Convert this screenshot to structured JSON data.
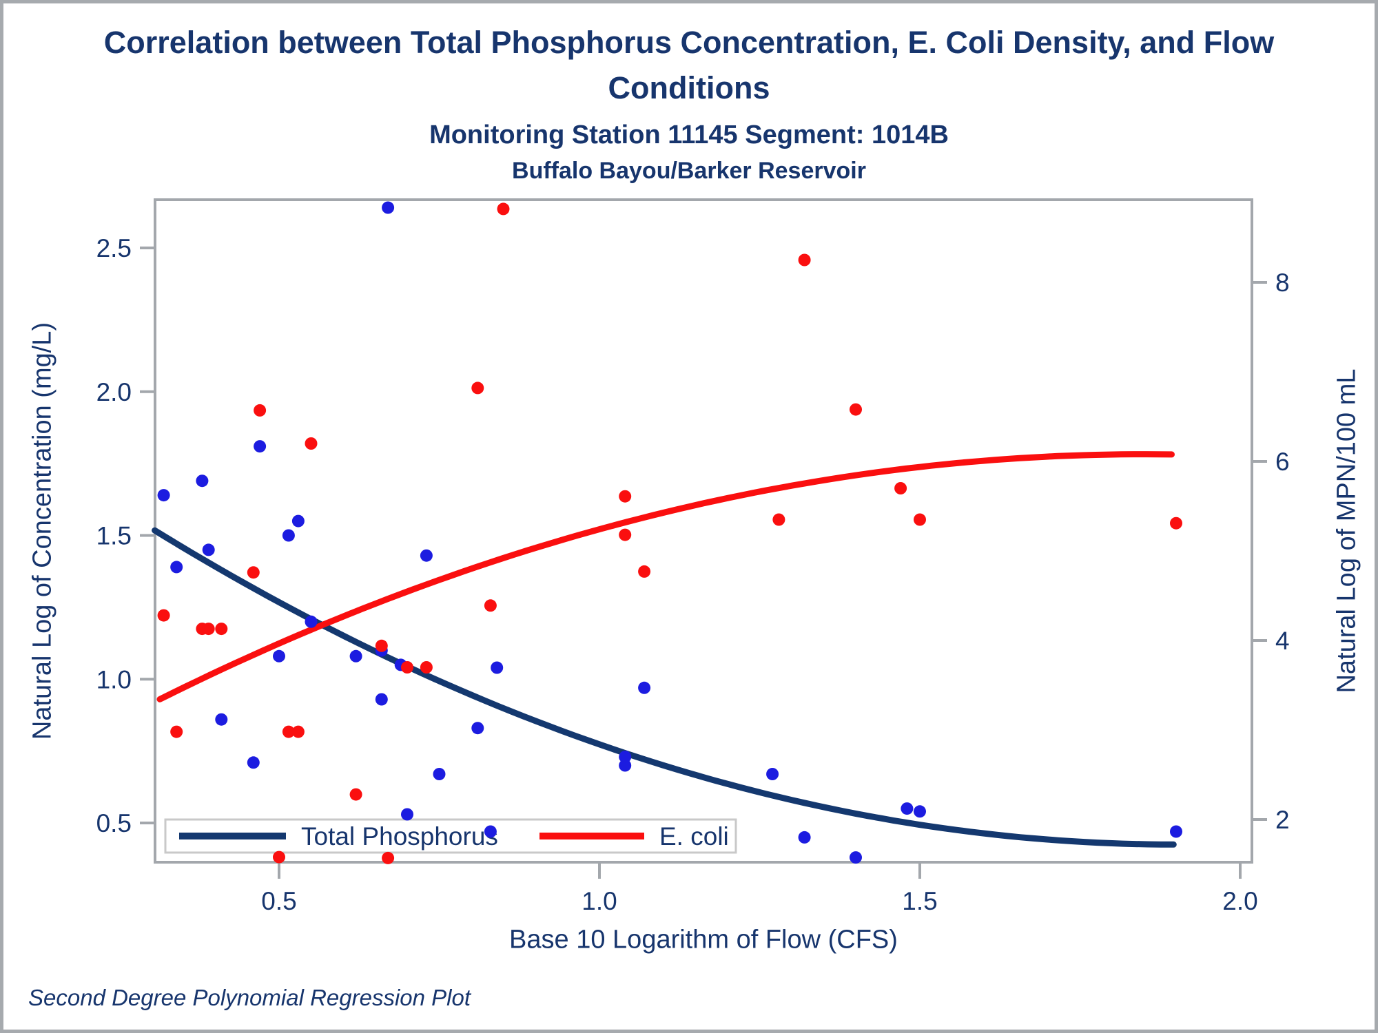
{
  "header": {
    "title_line1": "Correlation between Total Phosphorus Concentration, E. Coli Density, and Flow",
    "title_line2": "Conditions",
    "subtitle1": "Monitoring Station 11145 Segment: 1014B",
    "subtitle2": "Buffalo Bayou/Barker Reservoir"
  },
  "footnote": "Second Degree Polynomial Regression Plot",
  "colors": {
    "navy_text": "#17356d",
    "phosphorus_line": "#14386f",
    "phosphorus_point": "#1c1ce0",
    "ecoli": "#fa0f0f",
    "plot_border": "#a3a7ac",
    "legend_border": "#c9c9c9"
  },
  "chart_data": {
    "type": "scatter",
    "title": "Correlation between Total Phosphorus Concentration, E. Coli Density, and Flow Conditions",
    "subtitle": "Monitoring Station 11145 Segment: 1014B — Buffalo Bayou/Barker Reservoir",
    "grid": false,
    "legend_position": "inside bottom-left",
    "axes": {
      "x": {
        "title": "Base 10 Logarithm of Flow (CFS)",
        "range": [
          0.306,
          2.018
        ],
        "tick_values": [
          0.5,
          1.0,
          1.5,
          2.0
        ],
        "tick_labels": [
          "0.5",
          "1.0",
          "1.5",
          "2.0"
        ]
      },
      "left": {
        "title": "Natural Log of Concentration (mg/L)",
        "range": [
          0.363,
          2.667
        ],
        "tick_values": [
          0.5,
          1.0,
          1.5,
          2.0,
          2.5
        ],
        "tick_labels": [
          "0.5",
          "1.0",
          "1.5",
          "2.0",
          "2.5"
        ]
      },
      "right": {
        "title": "Natural Log of MPN/100 mL",
        "range": [
          1.523,
          8.923
        ],
        "tick_values": [
          2,
          4,
          6,
          8
        ],
        "tick_labels": [
          "2",
          "4",
          "6",
          "8"
        ]
      }
    },
    "series": [
      {
        "name": "Total Phosphorus",
        "axis": "left",
        "point_color": "#1c1ce0",
        "line_color": "#14386f",
        "points": [
          [
            0.32,
            1.64
          ],
          [
            0.34,
            1.39
          ],
          [
            0.38,
            1.69
          ],
          [
            0.39,
            1.45
          ],
          [
            0.41,
            0.86
          ],
          [
            0.46,
            0.71
          ],
          [
            0.47,
            1.81
          ],
          [
            0.515,
            1.5
          ],
          [
            0.53,
            1.55
          ],
          [
            0.55,
            1.2
          ],
          [
            0.5,
            1.08
          ],
          [
            0.62,
            1.08
          ],
          [
            0.66,
            1.1
          ],
          [
            0.69,
            1.05
          ],
          [
            0.66,
            0.93
          ],
          [
            0.67,
            2.64
          ],
          [
            0.73,
            1.43
          ],
          [
            0.7,
            0.53
          ],
          [
            0.75,
            0.67
          ],
          [
            0.83,
            0.47
          ],
          [
            0.81,
            0.83
          ],
          [
            0.84,
            1.04
          ],
          [
            1.04,
            0.73
          ],
          [
            1.04,
            0.7
          ],
          [
            1.07,
            0.97
          ],
          [
            1.27,
            0.67
          ],
          [
            1.32,
            0.45
          ],
          [
            1.4,
            0.38
          ],
          [
            1.48,
            0.55
          ],
          [
            1.5,
            0.54
          ],
          [
            1.9,
            0.47
          ]
        ],
        "regression": {
          "form": "second degree polynomial",
          "vertex_x": 1.9,
          "vertex_y": 0.425,
          "a": 0.43,
          "x_min": 0.306,
          "x_max": 1.896
        }
      },
      {
        "name": "E. coli",
        "axis": "right",
        "point_color": "#fa0f0f",
        "line_color": "#fa0f0f",
        "points": [
          [
            0.32,
            4.28
          ],
          [
            0.34,
            2.98
          ],
          [
            0.38,
            4.13
          ],
          [
            0.39,
            4.13
          ],
          [
            0.41,
            4.13
          ],
          [
            0.46,
            4.76
          ],
          [
            0.47,
            6.57
          ],
          [
            0.515,
            2.98
          ],
          [
            0.53,
            2.98
          ],
          [
            0.55,
            6.2
          ],
          [
            0.62,
            2.28
          ],
          [
            0.66,
            3.94
          ],
          [
            0.7,
            3.7
          ],
          [
            0.73,
            3.7
          ],
          [
            0.5,
            1.58
          ],
          [
            0.67,
            1.57
          ],
          [
            0.81,
            6.82
          ],
          [
            0.83,
            4.39
          ],
          [
            0.85,
            8.82
          ],
          [
            1.04,
            5.61
          ],
          [
            1.04,
            5.18
          ],
          [
            1.07,
            4.77
          ],
          [
            1.32,
            8.25
          ],
          [
            1.4,
            6.58
          ],
          [
            1.28,
            5.35
          ],
          [
            1.47,
            5.7
          ],
          [
            1.5,
            5.35
          ],
          [
            1.9,
            5.31
          ]
        ],
        "regression": {
          "form": "second degree polynomial",
          "vertex_x": 1.85,
          "vertex_y": 6.08,
          "a": -1.16,
          "x_min": 0.314,
          "x_max": 1.893
        }
      }
    ]
  }
}
